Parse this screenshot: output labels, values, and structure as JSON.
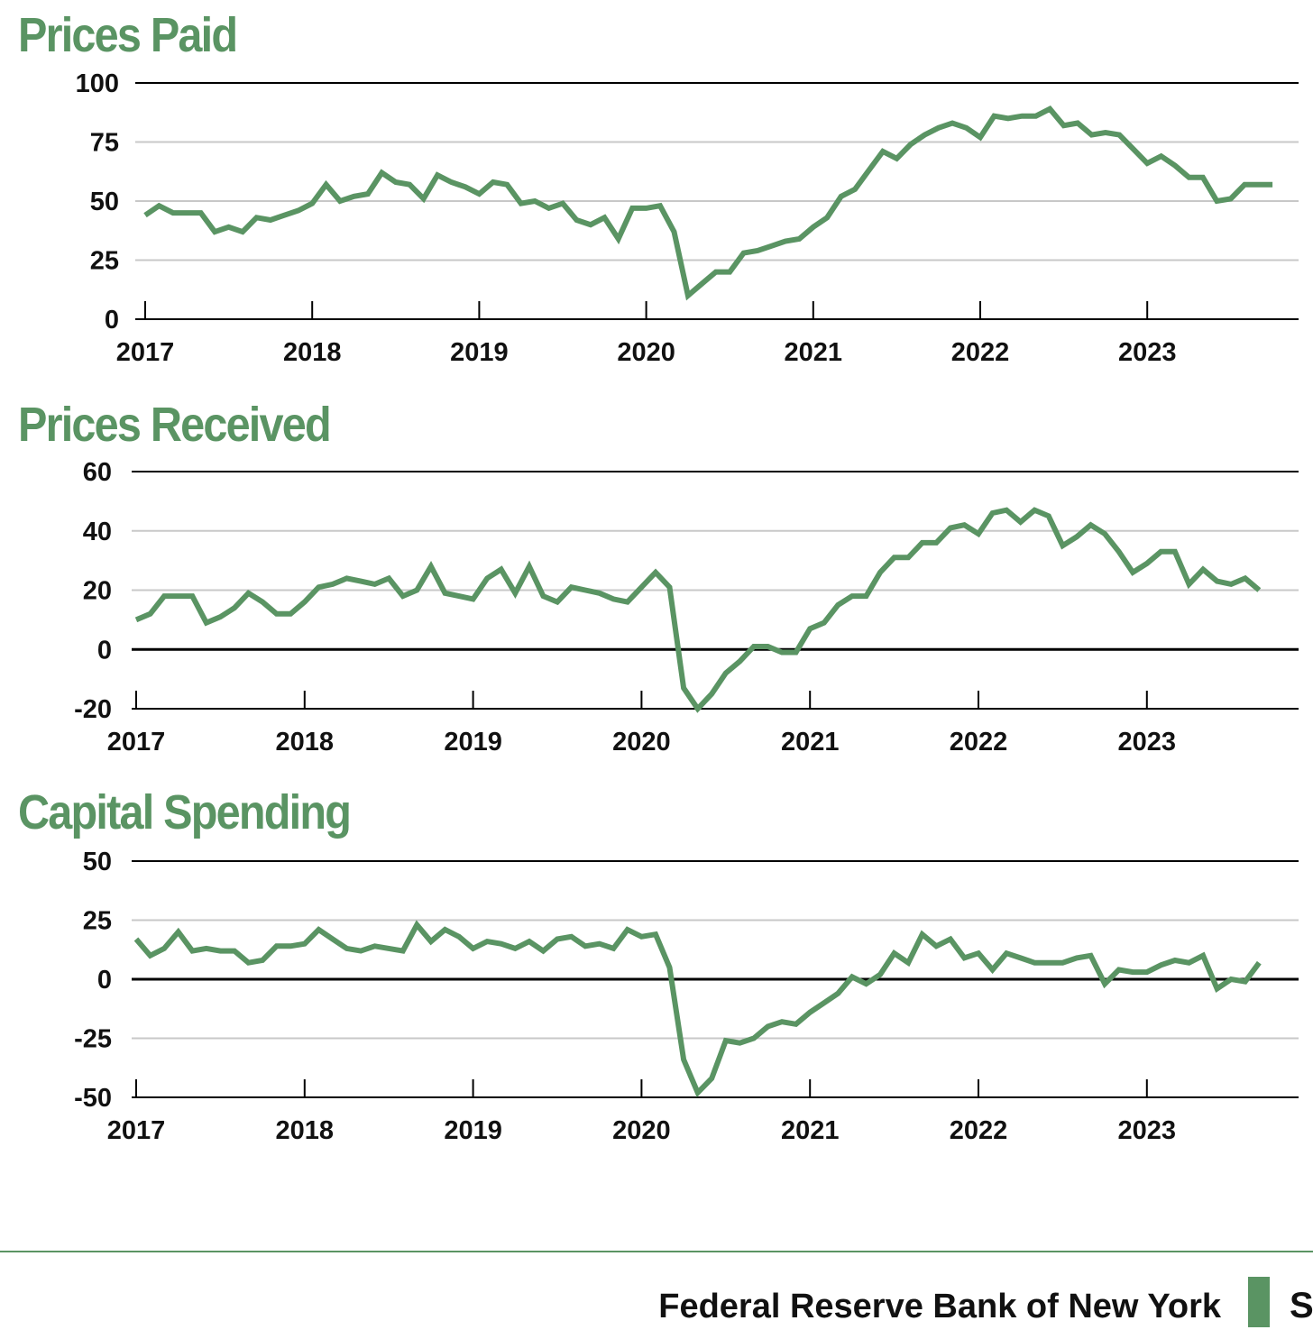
{
  "colors": {
    "line": "#5a9463",
    "title": "#5a9463",
    "grid": "#c8c8c8",
    "axis": "#000000"
  },
  "chart_data": [
    {
      "type": "line",
      "title": "Prices Paid",
      "xlabel": "",
      "ylabel": "",
      "x_start": 2017.0,
      "x_step_months": 1,
      "x_ticks": [
        "2017",
        "2018",
        "2019",
        "2020",
        "2021",
        "2022",
        "2023"
      ],
      "y_ticks": [
        "100",
        "75",
        "50",
        "25",
        "0"
      ],
      "ylim": [
        0,
        100
      ],
      "xlim": [
        2017.0,
        2023.95
      ],
      "values": [
        44,
        48,
        45,
        45,
        45,
        37,
        39,
        37,
        43,
        42,
        44,
        46,
        49,
        57,
        50,
        52,
        53,
        62,
        58,
        57,
        51,
        61,
        58,
        56,
        53,
        58,
        57,
        49,
        50,
        47,
        49,
        42,
        40,
        43,
        34,
        47,
        47,
        48,
        37,
        10,
        15,
        20,
        20,
        28,
        29,
        31,
        33,
        34,
        39,
        43,
        52,
        55,
        63,
        71,
        68,
        74,
        78,
        81,
        83,
        81,
        77,
        86,
        85,
        86,
        86,
        89,
        82,
        83,
        78,
        79,
        78,
        72,
        66,
        69,
        65,
        60,
        60,
        50,
        51,
        57,
        57,
        57
      ],
      "zero_line": false
    },
    {
      "type": "line",
      "title": "Prices Received",
      "xlabel": "",
      "ylabel": "",
      "x_start": 2017.0,
      "x_step_months": 1,
      "x_ticks": [
        "2017",
        "2018",
        "2019",
        "2020",
        "2021",
        "2022",
        "2023"
      ],
      "y_ticks": [
        "60",
        "40",
        "20",
        "0",
        "-20"
      ],
      "ylim": [
        -20,
        60
      ],
      "xlim": [
        2017.0,
        2023.95
      ],
      "values": [
        10,
        12,
        18,
        18,
        18,
        9,
        11,
        14,
        19,
        16,
        12,
        12,
        16,
        21,
        22,
        24,
        23,
        22,
        24,
        18,
        20,
        28,
        19,
        18,
        17,
        24,
        27,
        19,
        28,
        18,
        16,
        21,
        20,
        19,
        17,
        16,
        21,
        26,
        21,
        -13,
        -20,
        -15,
        -8,
        -4,
        1,
        1,
        -1,
        -1,
        7,
        9,
        15,
        18,
        18,
        26,
        31,
        31,
        36,
        36,
        41,
        42,
        39,
        46,
        47,
        43,
        47,
        45,
        35,
        38,
        42,
        39,
        33,
        26,
        29,
        33,
        33,
        22,
        27,
        23,
        22,
        24,
        20
      ],
      "zero_line": true
    },
    {
      "type": "line",
      "title": "Capital Spending",
      "xlabel": "",
      "ylabel": "",
      "x_start": 2017.0,
      "x_step_months": 1,
      "x_ticks": [
        "2017",
        "2018",
        "2019",
        "2020",
        "2021",
        "2022",
        "2023"
      ],
      "y_ticks": [
        "50",
        "25",
        "0",
        "-25",
        "-50"
      ],
      "ylim": [
        -50,
        50
      ],
      "xlim": [
        2017.0,
        2023.95
      ],
      "values": [
        17,
        10,
        13,
        20,
        12,
        13,
        12,
        12,
        7,
        8,
        14,
        14,
        15,
        21,
        17,
        13,
        12,
        14,
        13,
        12,
        23,
        16,
        21,
        18,
        13,
        16,
        15,
        13,
        16,
        12,
        17,
        18,
        14,
        15,
        13,
        21,
        18,
        19,
        5,
        -34,
        -48,
        -42,
        -26,
        -27,
        -25,
        -20,
        -18,
        -19,
        -14,
        -10,
        -6,
        1,
        -2,
        2,
        11,
        7,
        19,
        14,
        17,
        9,
        11,
        4,
        11,
        9,
        7,
        7,
        7,
        9,
        10,
        -2,
        4,
        3,
        3,
        6,
        8,
        7,
        10,
        -4,
        0,
        -1,
        7
      ],
      "zero_line": true
    }
  ],
  "footer": {
    "org": "Federal Reserve Bank of New York",
    "initial": "S"
  }
}
